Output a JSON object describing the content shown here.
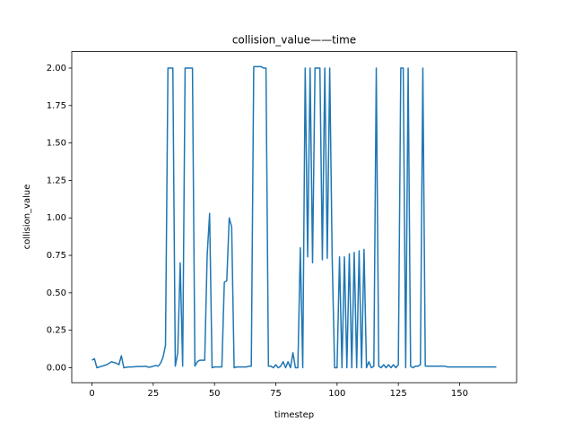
{
  "chart_data": {
    "type": "line",
    "title": "collision_value——time",
    "x_label": "timestep",
    "y_label": "collision_value",
    "x": [
      0,
      1,
      2,
      3,
      4,
      5,
      6,
      7,
      8,
      9,
      10,
      11,
      12,
      13,
      14,
      15,
      16,
      17,
      18,
      19,
      20,
      21,
      22,
      23,
      24,
      25,
      26,
      27,
      28,
      29,
      30,
      31,
      32,
      33,
      34,
      35,
      36,
      37,
      38,
      39,
      40,
      41,
      42,
      43,
      44,
      45,
      46,
      47,
      48,
      49,
      50,
      51,
      52,
      53,
      54,
      55,
      56,
      57,
      58,
      59,
      60,
      61,
      62,
      63,
      64,
      65,
      66,
      67,
      68,
      69,
      70,
      71,
      72,
      73,
      74,
      75,
      76,
      77,
      78,
      79,
      80,
      81,
      82,
      83,
      84,
      85,
      86,
      87,
      88,
      89,
      90,
      91,
      92,
      93,
      94,
      95,
      96,
      97,
      98,
      99,
      100,
      101,
      102,
      103,
      104,
      105,
      106,
      107,
      108,
      109,
      110,
      111,
      112,
      113,
      114,
      115,
      116,
      117,
      118,
      119,
      120,
      121,
      122,
      123,
      124,
      125,
      126,
      127,
      128,
      129,
      130,
      131,
      132,
      133,
      134,
      135,
      136,
      137,
      138,
      139,
      140,
      141,
      142,
      143,
      144,
      145,
      146,
      147,
      148,
      149,
      150,
      151,
      152,
      153,
      154,
      155,
      156,
      157,
      158,
      159,
      160,
      161,
      162,
      163,
      164,
      165
    ],
    "series": [
      {
        "color": "#1f77b4",
        "values": [
          0.05,
          0.06,
          0.0,
          0.005,
          0.01,
          0.015,
          0.02,
          0.03,
          0.04,
          0.035,
          0.03,
          0.02,
          0.08,
          0.0,
          0.003,
          0.005,
          0.005,
          0.006,
          0.007,
          0.008,
          0.008,
          0.008,
          0.01,
          0.003,
          0.005,
          0.01,
          0.015,
          0.01,
          0.03,
          0.07,
          0.15,
          2.0,
          2.0,
          2.0,
          0.01,
          0.1,
          0.7,
          0.01,
          2.0,
          2.0,
          2.0,
          2.0,
          0.01,
          0.04,
          0.05,
          0.05,
          0.05,
          0.75,
          1.03,
          0.0,
          0.005,
          0.005,
          0.005,
          0.005,
          0.57,
          0.58,
          1.0,
          0.94,
          0.0,
          0.005,
          0.005,
          0.005,
          0.005,
          0.005,
          0.01,
          0.01,
          2.01,
          2.01,
          2.01,
          2.01,
          2.0,
          2.0,
          0.01,
          0.01,
          0.0,
          0.02,
          0.0,
          0.01,
          0.04,
          0.0,
          0.04,
          0.0,
          0.1,
          0.0,
          0.0,
          0.8,
          0.0,
          2.0,
          0.74,
          2.0,
          0.7,
          2.0,
          2.0,
          2.0,
          0.72,
          2.0,
          0.73,
          2.0,
          0.74,
          0.0,
          0.0,
          0.74,
          0.0,
          0.74,
          0.0,
          0.76,
          0.0,
          0.77,
          0.0,
          0.78,
          0.0,
          0.79,
          0.0,
          0.04,
          0.0,
          0.01,
          2.0,
          0.01,
          0.0,
          0.02,
          0.0,
          0.02,
          0.0,
          0.02,
          0.0,
          0.02,
          2.0,
          2.0,
          0.0,
          2.0,
          0.01,
          0.0,
          0.01,
          0.01,
          0.02,
          2.0,
          0.01,
          0.01,
          0.01,
          0.01,
          0.01,
          0.01,
          0.01,
          0.01,
          0.01,
          0.005,
          0.005,
          0.005,
          0.005,
          0.005,
          0.005,
          0.005,
          0.005,
          0.005,
          0.005,
          0.005,
          0.005,
          0.005,
          0.005,
          0.005,
          0.005,
          0.005,
          0.005,
          0.005,
          0.005,
          0.005
        ]
      }
    ],
    "xlim": [
      -8.25,
      173.25
    ],
    "ylim": [
      -0.1,
      2.11
    ],
    "xticks": [
      0,
      25,
      50,
      75,
      100,
      125,
      150
    ],
    "yticks": [
      {
        "value": 0,
        "label": "0.00"
      },
      {
        "value": 0.25,
        "label": "0.25"
      },
      {
        "value": 0.5,
        "label": "0.50"
      },
      {
        "value": 0.75,
        "label": "0.75"
      },
      {
        "value": 1,
        "label": "1.00"
      },
      {
        "value": 1.25,
        "label": "1.25"
      },
      {
        "value": 1.5,
        "label": "1.50"
      },
      {
        "value": 1.75,
        "label": "1.75"
      },
      {
        "value": 2,
        "label": "2.00"
      }
    ]
  }
}
